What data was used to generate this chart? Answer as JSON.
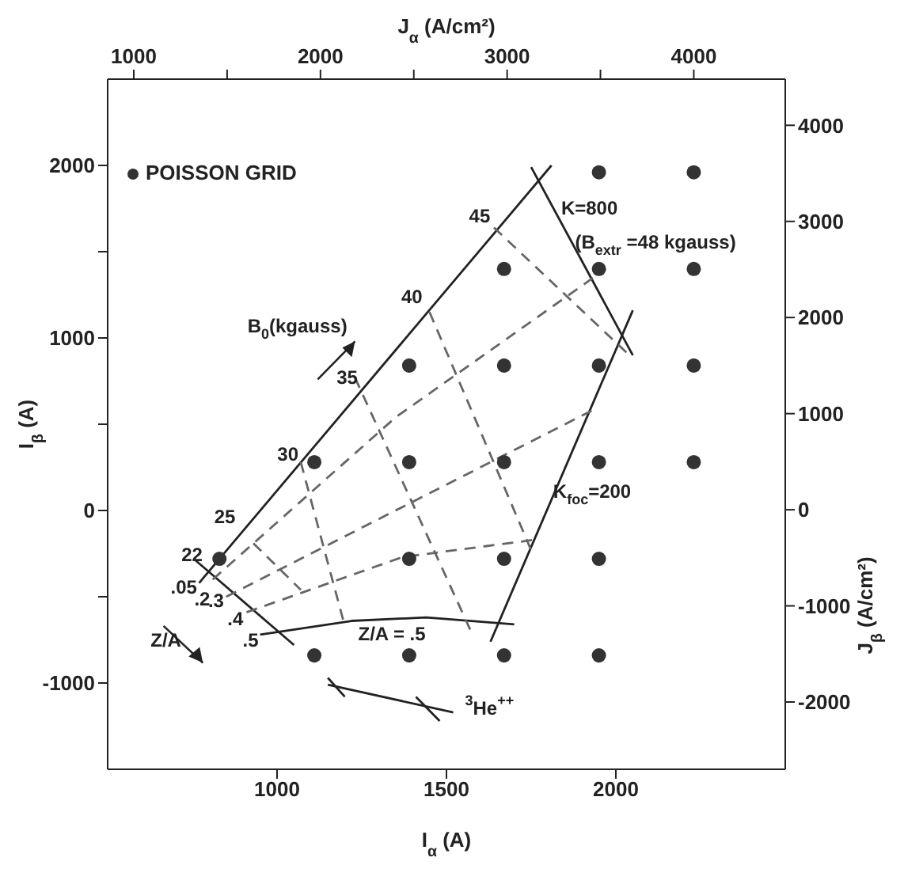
{
  "chart_data": {
    "type": "scatter",
    "xlabel": "I$_{α}$ (A)",
    "x2label": "J$_{α}$ (A/cm²)",
    "ylabel": "I$_{β}$ (A)",
    "y2label": "J$_{β}$ (A/cm²)",
    "xlim": [
      500,
      2500
    ],
    "xticks": [
      1000,
      1500,
      2000
    ],
    "x2lim": [
      860,
      4490
    ],
    "x2ticks": [
      1000,
      {
        "value": 1500,
        "label": null
      },
      2000,
      {
        "value": 2500,
        "label": null
      },
      3000,
      {
        "value": 3500,
        "label": null
      },
      4000
    ],
    "ylim": [
      -1500,
      2500
    ],
    "yticks": [
      -1000,
      {
        "value": -500,
        "label": null
      },
      0,
      {
        "value": 500,
        "label": null
      },
      1000,
      {
        "value": 1500,
        "label": null
      },
      2000
    ],
    "y2lim": [
      -2700,
      4480
    ],
    "y2ticks": [
      -2000,
      -1000,
      0,
      1000,
      2000,
      3000,
      4000
    ],
    "grid": false,
    "legend": "top left",
    "marker": "circle",
    "series": [
      {
        "name": "POISSON GRID",
        "color": "#333333",
        "x": [
          1950,
          2230,
          1670,
          1950,
          2230,
          1390,
          1670,
          1950,
          2230,
          1110,
          1390,
          1670,
          1950,
          2230,
          830,
          1390,
          1670,
          1950,
          1110,
          1390,
          1670,
          1950
        ],
        "values": [
          1960,
          1960,
          1400,
          1400,
          1400,
          840,
          840,
          840,
          840,
          280,
          280,
          280,
          280,
          280,
          -280,
          -280,
          -280,
          -280,
          -840,
          -840,
          -840,
          -840
        ]
      },
      {
        "type": "line",
        "color": "#222222",
        "line_style": "solid",
        "marker": "none",
        "x": [
          770,
          1810
        ],
        "values": [
          -420,
          2000
        ]
      },
      {
        "type": "line",
        "color": "#222222",
        "line_style": "solid",
        "marker": "none",
        "x": [
          1750,
          2050
        ],
        "values": [
          1990,
          900
        ]
      },
      {
        "type": "line",
        "color": "#222222",
        "line_style": "solid",
        "marker": "none",
        "x": [
          1630,
          2050
        ],
        "values": [
          -760,
          1160
        ]
      },
      {
        "type": "line",
        "color": "#222222",
        "line_style": "solid",
        "marker": "none",
        "x": [
          950,
          1220,
          1440,
          1700
        ],
        "values": [
          -720,
          -640,
          -620,
          -660
        ]
      },
      {
        "type": "line",
        "color": "#222222",
        "line_style": "solid",
        "marker": "none",
        "x": [
          760,
          1050
        ],
        "values": [
          -290,
          -780
        ]
      },
      {
        "type": "line",
        "color": "#222222",
        "line_style": "solid",
        "marker": "none",
        "x": [
          1150,
          1520
        ],
        "values": [
          -1010,
          -1170
        ]
      },
      {
        "type": "line",
        "color": "#222222",
        "line_style": "solid",
        "marker": "none",
        "x": [
          1150,
          1200
        ],
        "values": [
          -970,
          -1080
        ]
      },
      {
        "type": "line",
        "color": "#222222",
        "line_style": "solid",
        "marker": "none",
        "x": [
          1410,
          1480
        ],
        "values": [
          -1080,
          -1220
        ]
      },
      {
        "type": "line",
        "color": "#666666",
        "line_style": "dashed",
        "marker": "none",
        "x": [
          1640,
          2040
        ],
        "values": [
          1640,
          900
        ]
      },
      {
        "type": "line",
        "color": "#666666",
        "line_style": "dashed",
        "marker": "none",
        "x": [
          1450,
          1750
        ],
        "values": [
          1150,
          -230
        ]
      },
      {
        "type": "line",
        "color": "#666666",
        "line_style": "dashed",
        "marker": "none",
        "x": [
          1230,
          1570
        ],
        "values": [
          770,
          -690
        ]
      },
      {
        "type": "line",
        "color": "#666666",
        "line_style": "dashed",
        "marker": "none",
        "x": [
          1070,
          1200
        ],
        "values": [
          280,
          -670
        ]
      },
      {
        "type": "line",
        "color": "#666666",
        "line_style": "dashed",
        "marker": "none",
        "x": [
          930,
          1070
        ],
        "values": [
          -190,
          -460
        ]
      },
      {
        "type": "line",
        "color": "#666666",
        "line_style": "dashed",
        "marker": "none",
        "x": [
          810,
          1350,
          1970
        ],
        "values": [
          -400,
          540,
          1400
        ]
      },
      {
        "type": "line",
        "color": "#666666",
        "line_style": "dashed",
        "marker": "none",
        "x": [
          850,
          1940
        ],
        "values": [
          -500,
          590
        ]
      },
      {
        "type": "line",
        "color": "#666666",
        "line_style": "dashed",
        "marker": "none",
        "x": [
          910,
          1370,
          1760
        ],
        "values": [
          -590,
          -270,
          -170
        ]
      }
    ],
    "annotations": [
      "45",
      "40",
      "35",
      "30",
      "25",
      "22",
      ".05",
      ".2",
      ".3",
      ".4",
      ".5",
      "B$_{0}$(kgauss)",
      "K=800",
      "(B$_{extr}$ =48 kgauss)",
      "K$_{foc}$=200",
      "Z/A = .5",
      "Z/A",
      "$^{3}$He$^{++}$"
    ]
  }
}
